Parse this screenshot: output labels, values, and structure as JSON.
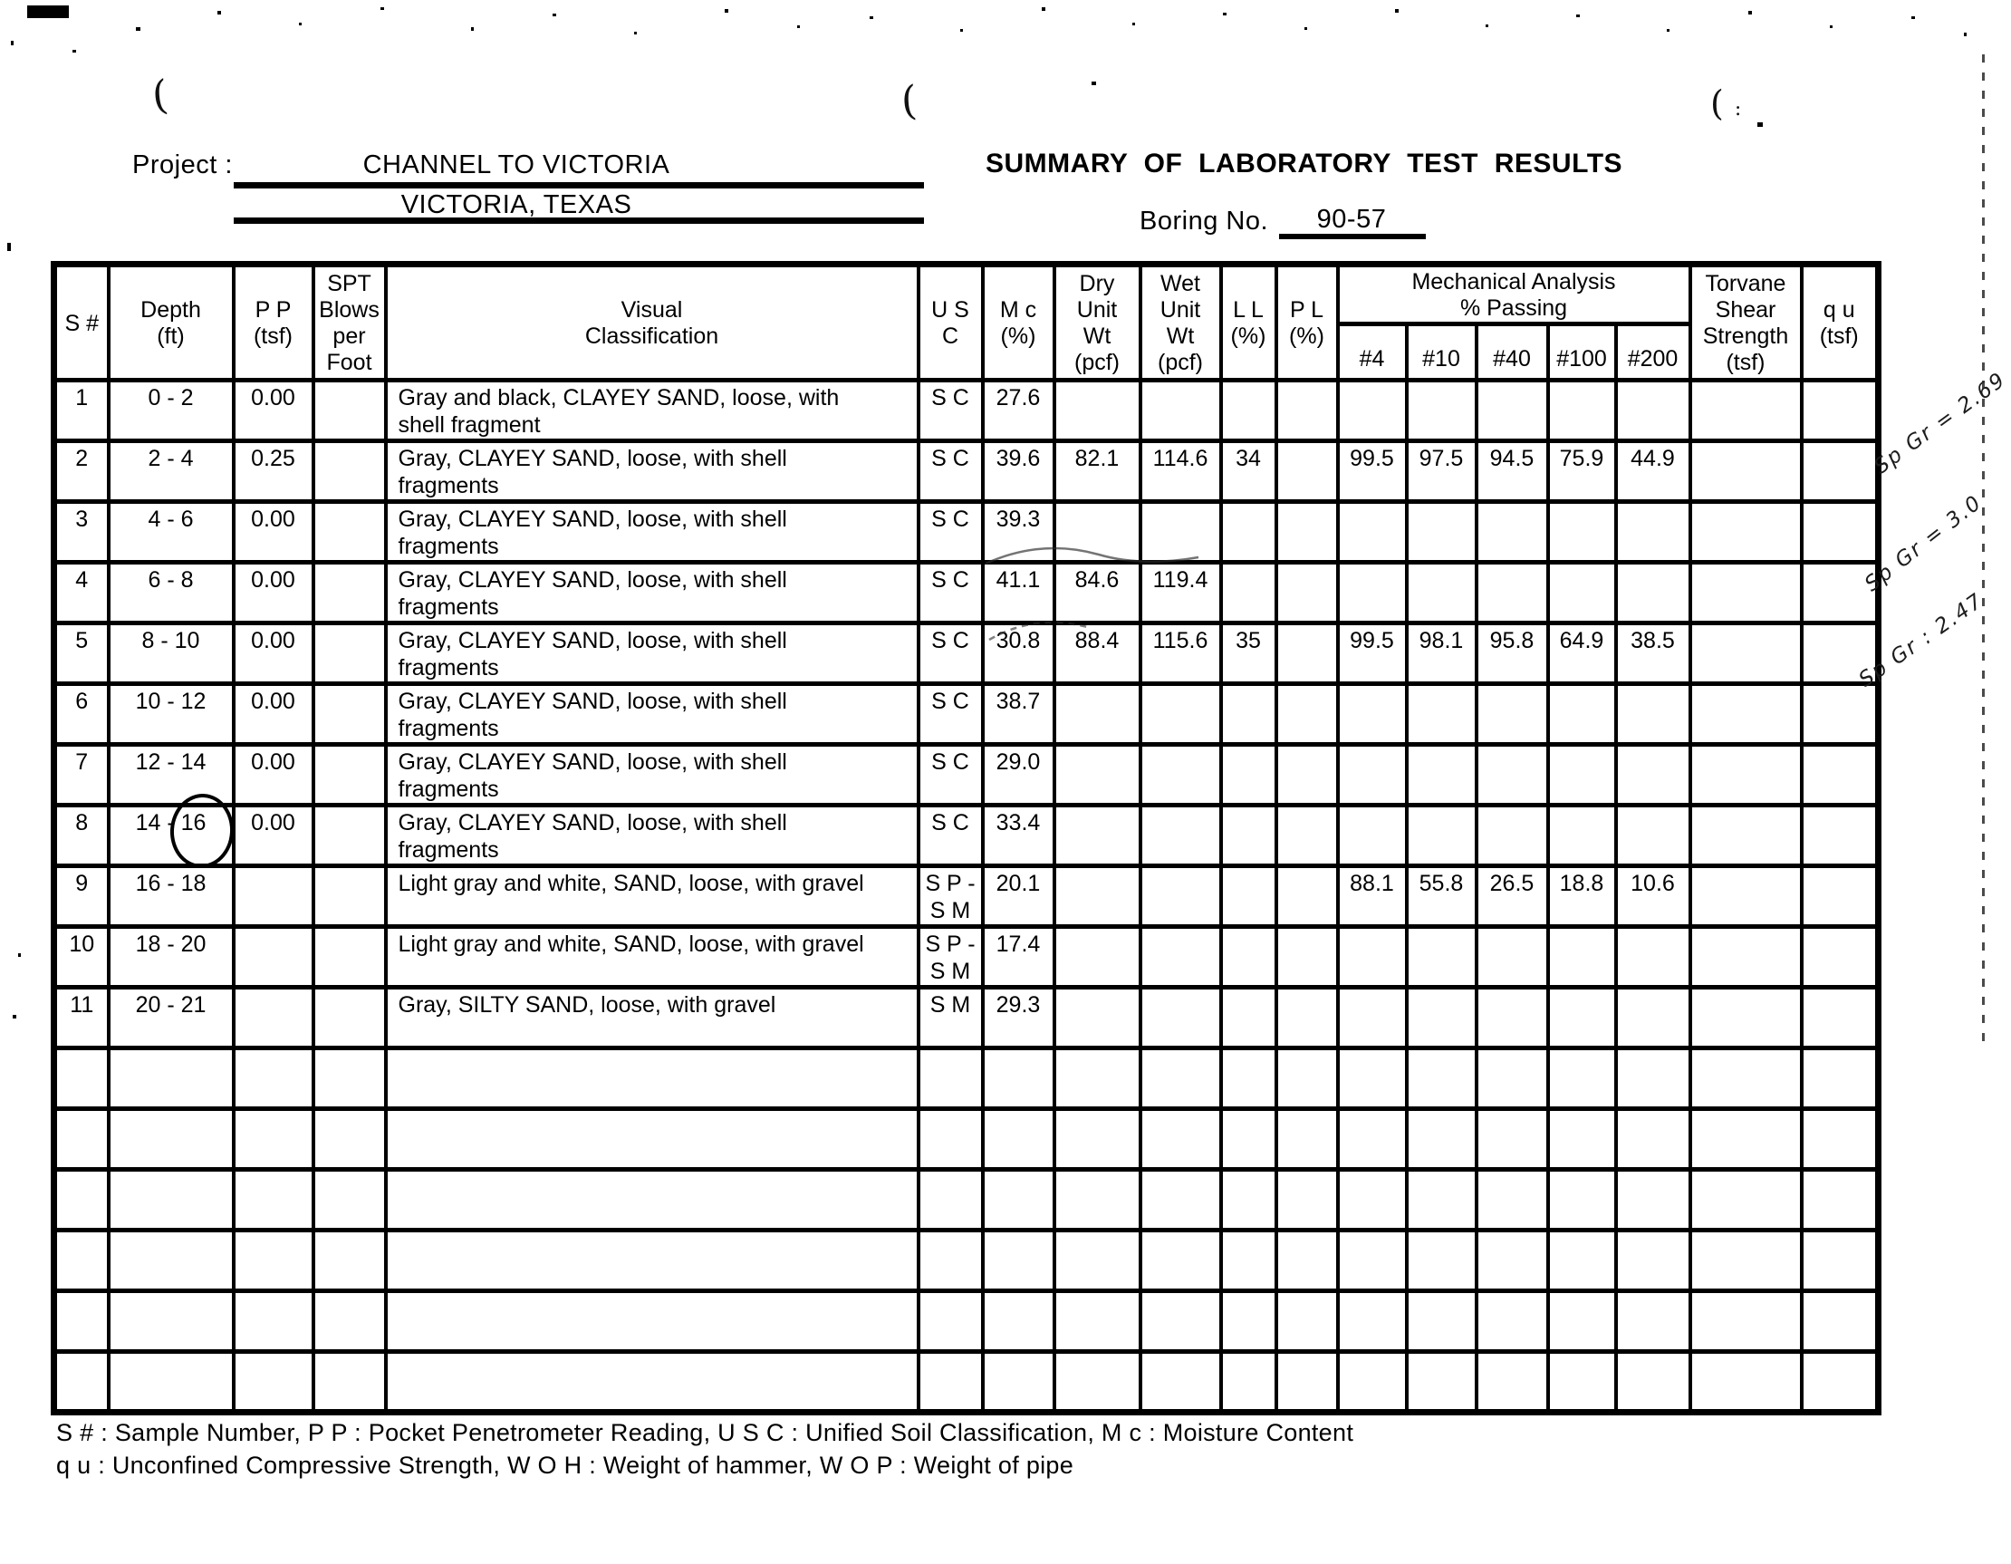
{
  "header": {
    "project_label": "Project  :",
    "project_line1": "CHANNEL TO VICTORIA",
    "project_line2": "VICTORIA, TEXAS",
    "title": "SUMMARY OF LABORATORY TEST RESULTS",
    "boring_label": "Boring No.",
    "boring_value": "90-57"
  },
  "table": {
    "columns": {
      "s": "S #",
      "depth": "Depth\n(ft)",
      "pp": "P P\n(tsf)",
      "spt": "SPT\nBlows\nper\nFoot",
      "visual": "Visual\nClassification",
      "usc": "U S C",
      "mc": "M c\n(%)",
      "dry": "Dry\nUnit\nWt\n(pcf)",
      "wet": "Wet\nUnit\nWt\n(pcf)",
      "ll": "L L\n(%)",
      "pl": "P L\n(%)",
      "mech_group": "Mechanical Analysis\n% Passing",
      "p4": "#4",
      "p10": "#10",
      "p40": "#40",
      "p100": "#100",
      "p200": "#200",
      "torvane": "Torvane\nShear\nStrength\n(tsf)",
      "qu": "q u\n(tsf)"
    },
    "rows": [
      {
        "s": "1",
        "depth": "0 - 2",
        "pp": "0.00",
        "spt": "",
        "visual": "Gray and black, CLAYEY SAND, loose, with\nshell fragment",
        "usc": "S C",
        "mc": "27.6",
        "dry": "",
        "wet": "",
        "ll": "",
        "pl": "",
        "p4": "",
        "p10": "",
        "p40": "",
        "p100": "",
        "p200": "",
        "torvane": "",
        "qu": ""
      },
      {
        "s": "2",
        "depth": "2 - 4",
        "pp": "0.25",
        "spt": "",
        "visual": "Gray, CLAYEY SAND, loose, with shell\nfragments",
        "usc": "S C",
        "mc": "39.6",
        "dry": "82.1",
        "wet": "114.6",
        "ll": "34",
        "pl": "",
        "p4": "99.5",
        "p10": "97.5",
        "p40": "94.5",
        "p100": "75.9",
        "p200": "44.9",
        "torvane": "",
        "qu": ""
      },
      {
        "s": "3",
        "depth": "4 - 6",
        "pp": "0.00",
        "spt": "",
        "visual": "Gray, CLAYEY SAND, loose, with shell\nfragments",
        "usc": "S C",
        "mc": "39.3",
        "dry": "",
        "wet": "",
        "ll": "",
        "pl": "",
        "p4": "",
        "p10": "",
        "p40": "",
        "p100": "",
        "p200": "",
        "torvane": "",
        "qu": ""
      },
      {
        "s": "4",
        "depth": "6 - 8",
        "pp": "0.00",
        "spt": "",
        "visual": "Gray, CLAYEY SAND, loose, with shell\nfragments",
        "usc": "S C",
        "mc": "41.1",
        "dry": "84.6",
        "wet": "119.4",
        "ll": "",
        "pl": "",
        "p4": "",
        "p10": "",
        "p40": "",
        "p100": "",
        "p200": "",
        "torvane": "",
        "qu": ""
      },
      {
        "s": "5",
        "depth": "8 - 10",
        "pp": "0.00",
        "spt": "",
        "visual": "Gray, CLAYEY SAND, loose, with shell\nfragments",
        "usc": "S C",
        "mc": "30.8",
        "dry": "88.4",
        "wet": "115.6",
        "ll": "35",
        "pl": "",
        "p4": "99.5",
        "p10": "98.1",
        "p40": "95.8",
        "p100": "64.9",
        "p200": "38.5",
        "torvane": "",
        "qu": ""
      },
      {
        "s": "6",
        "depth": "10 - 12",
        "pp": "0.00",
        "spt": "",
        "visual": "Gray, CLAYEY SAND, loose, with shell\nfragments",
        "usc": "S C",
        "mc": "38.7",
        "dry": "",
        "wet": "",
        "ll": "",
        "pl": "",
        "p4": "",
        "p10": "",
        "p40": "",
        "p100": "",
        "p200": "",
        "torvane": "",
        "qu": ""
      },
      {
        "s": "7",
        "depth": "12 - 14",
        "pp": "0.00",
        "spt": "",
        "visual": "Gray, CLAYEY SAND, loose, with shell\nfragments",
        "usc": "S C",
        "mc": "29.0",
        "dry": "",
        "wet": "",
        "ll": "",
        "pl": "",
        "p4": "",
        "p10": "",
        "p40": "",
        "p100": "",
        "p200": "",
        "torvane": "",
        "qu": ""
      },
      {
        "s": "8",
        "depth": "14 - 16",
        "pp": "0.00",
        "spt": "",
        "visual": "Gray, CLAYEY SAND, loose, with shell\nfragments",
        "usc": "S C",
        "mc": "33.4",
        "dry": "",
        "wet": "",
        "ll": "",
        "pl": "",
        "p4": "",
        "p10": "",
        "p40": "",
        "p100": "",
        "p200": "",
        "torvane": "",
        "qu": ""
      },
      {
        "s": "9",
        "depth": "16 - 18",
        "pp": "",
        "spt": "",
        "visual": "Light gray and white, SAND, loose, with gravel",
        "usc": "S P -\nS M",
        "mc": "20.1",
        "dry": "",
        "wet": "",
        "ll": "",
        "pl": "",
        "p4": "88.1",
        "p10": "55.8",
        "p40": "26.5",
        "p100": "18.8",
        "p200": "10.6",
        "torvane": "",
        "qu": ""
      },
      {
        "s": "10",
        "depth": "18 - 20",
        "pp": "",
        "spt": "",
        "visual": "Light gray and white, SAND, loose, with gravel",
        "usc": "S P -\nS M",
        "mc": "17.4",
        "dry": "",
        "wet": "",
        "ll": "",
        "pl": "",
        "p4": "",
        "p10": "",
        "p40": "",
        "p100": "",
        "p200": "",
        "torvane": "",
        "qu": ""
      },
      {
        "s": "11",
        "depth": "20 - 21",
        "pp": "",
        "spt": "",
        "visual": "Gray, SILTY SAND, loose, with gravel",
        "usc": "S M",
        "mc": "29.3",
        "dry": "",
        "wet": "",
        "ll": "",
        "pl": "",
        "p4": "",
        "p10": "",
        "p40": "",
        "p100": "",
        "p200": "",
        "torvane": "",
        "qu": ""
      }
    ],
    "empty_row_count": 6
  },
  "annotations": {
    "margin_notes": [
      "Sp Gr = 2.69",
      "Sp Gr = 3.0",
      "Sp Gr : 2.47"
    ],
    "circled_text": "16"
  },
  "footnotes": [
    "S # : Sample Number, P P : Pocket Penetrometer Reading, U S C : Unified Soil Classification, M c : Moisture Content",
    "q u : Unconfined Compressive Strength, W O H : Weight of hammer, W O P : Weight of pipe"
  ]
}
